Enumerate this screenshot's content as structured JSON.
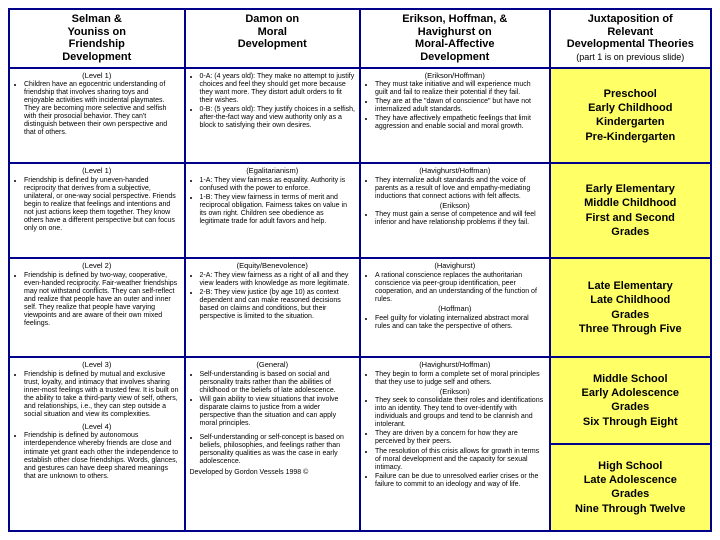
{
  "colors": {
    "border": "#00008b",
    "highlight_bg": "#ffff66",
    "text": "#000000",
    "background": "#ffffff"
  },
  "header": {
    "col1": {
      "l1": "Selman &",
      "l2": "Youniss on",
      "l3": "Friendship",
      "l4": "Development"
    },
    "col2": {
      "l1": "Damon on",
      "l2": "Moral",
      "l3": "Development"
    },
    "col3": {
      "l1": "Erikson, Hoffman, &",
      "l2": "Havighurst on",
      "l3": "Moral-Affective",
      "l4": "Development"
    },
    "col4": {
      "l1": "Juxtaposition of",
      "l2": "Relevant",
      "l3": "Developmental Theories",
      "sub": "(part 1 is on previous slide)"
    }
  },
  "row1": {
    "selman": {
      "level": "(Level 1)",
      "text": "Children have an egocentric understanding of friendship that involves sharing toys and enjoyable activities with incidental playmates. They are becoming more selective and selfish with their prosocial behavior. They can't distinguish between their own perspective and that of others."
    },
    "damon": {
      "a": "0-A: (4 years old): They make no attempt to justify choices and feel they should get more because they want more. They distort adult orders to fit their wishes.",
      "b": "0-B: (5 years old): They justify choices in a selfish, after-the-fact way and view authority only as a block to satisfying their own desires."
    },
    "erikson": {
      "h": "(Erikson/Hoffman)",
      "a": "They must take initiative and will experience much guilt and fail to realize their potential if they fail.",
      "b": "They are at the \"dawn of conscience\" but have not internalized adult standards.",
      "c": "They have affectively empathetic feelings that limit aggression and enable social and moral growth."
    },
    "stage": "Preschool\nEarly Childhood\nKindergarten\nPre-Kindergarten"
  },
  "row2": {
    "selman": {
      "level": "(Level 1)",
      "text": "Friendship is defined by uneven-handed reciprocity that derives from a subjective, unilateral, or one-way social perspective. Friends begin to realize that feelings and intentions and not just actions keep them together. They know others have a different perspective but can focus only on one."
    },
    "damon": {
      "h": "(Egalitarianism)",
      "a": "1-A: They view fairness as equality. Authority is confused with the power to enforce.",
      "b": "1-B: They view fairness in terms of merit and reciprocal obligation. Fairness takes on value in its own right. Children see obedience as legitimate trade for adult favors and help."
    },
    "erikson": {
      "h1": "(Havighurst/Hoffman)",
      "a": "They internalize adult standards and the voice of parents as a result of love and empathy-mediating inductions that connect actions with felt affects.",
      "h2": "(Erikson)",
      "b": "They must gain a sense of competence and will feel inferior and have relationship problems if they fail."
    },
    "stage": "Early Elementary\nMiddle Childhood\nFirst and Second\nGrades"
  },
  "row3": {
    "selman": {
      "level": "(Level 2)",
      "text": "Friendship is defined by two-way, cooperative, even-handed reciprocity. Fair-weather friendships may not withstand conflicts. They can self-reflect and realize that people have an outer and inner self. They realize that people have varying viewpoints and are aware of their own mixed feelings."
    },
    "damon": {
      "h": "(Equity/Benevolence)",
      "a": "2-A: They view fairness as a right of all and they view leaders with knowledge as more legitimate.",
      "b": "2-B: They view justice (by age 10) as context dependent and can make reasoned decisions based on claims and conditions, but their perspective is limited to the situation."
    },
    "erikson": {
      "h1": "(Havighurst)",
      "a": "A rational conscience replaces the authoritarian conscience via peer-group identification, peer cooperation, and an understanding of the function of rules.",
      "h2": "(Hoffman)",
      "b": "Feel guilty for violating internalized abstract moral rules and can take the perspective of others."
    },
    "stage": "Late Elementary\nLate Childhood\nGrades\nThree Through Five"
  },
  "row4": {
    "selman": {
      "level": "(Level 3)",
      "text": "Friendship is defined by mutual and exclusive trust, loyalty, and intimacy that involves sharing inner-most feelings with a trusted few. It is built on the ability to take a third-party view of self, others, and relationships, i.e., they can step outside a social situation and view its complexities."
    },
    "damon": {
      "h": "(General)",
      "a": "Self-understanding is based on social and personality traits rather than the abilities of childhood or the beliefs of late adolescence.",
      "b": "Will gain ability to view situations that involve disparate claims to justice from a wider perspective than the situation and can apply moral principles."
    },
    "erikson": {
      "h1": "(Havighurst/Hoffman)",
      "a": "They begin to form a complete set of moral principles that they use to judge self and others.",
      "h2": "(Erikson)",
      "b": "They seek to consolidate their roles and identifications into an identity. They tend to over-identify with individuals and groups and tend to be clannish and intolerant.",
      "c": "They are driven by a concern for how they are perceived by their peers.",
      "d": "The resolution of this crisis allows for growth in terms of moral development and the capacity for sexual intimacy.",
      "e": "Failure can be due to unresolved earlier crises or the failure to commit to an ideology and way of life."
    },
    "stage": "Middle School\nEarly Adolescence\nGrades\nSix Through Eight"
  },
  "row5": {
    "selman": {
      "level": "(Level 4)",
      "text": "Friendship is defined by autonomous interdependence whereby friends are close and intimate yet grant each other the independence to establish other close friendships. Words, glances, and gestures can have deep shared meanings that are unknown to others."
    },
    "damon": {
      "text": "Self-understanding or self-concept is based on beliefs, philosophies, and feelings rather than personality qualities as was the case in early adolescence."
    },
    "credit": "Developed by Gordon Vessels 1998 ©",
    "stage": "High School\nLate Adolescence\nGrades\nNine Through Twelve"
  }
}
